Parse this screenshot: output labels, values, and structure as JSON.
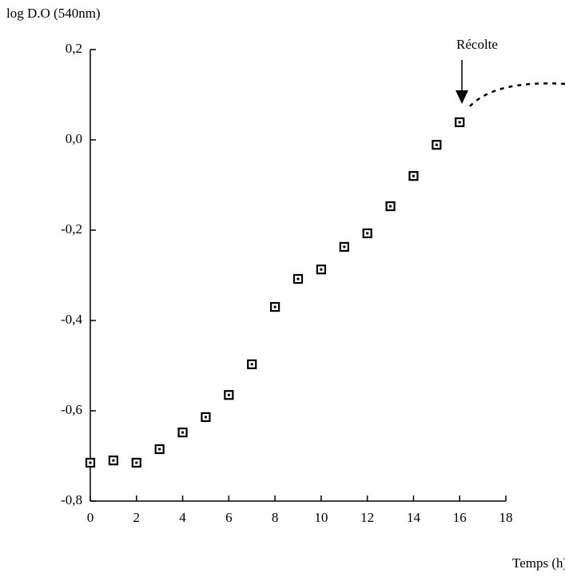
{
  "chart_data": {
    "type": "scatter",
    "y_label": "log D.O (540nm)",
    "x_label": "Temps (h)",
    "annotation": "Récolte",
    "color": "#000000",
    "x": [
      0,
      1,
      2,
      3,
      4,
      5,
      6,
      7,
      8,
      9,
      10,
      11,
      12,
      13,
      14,
      15,
      16
    ],
    "values": [
      -0.715,
      -0.71,
      -0.715,
      -0.685,
      -0.648,
      -0.614,
      -0.565,
      -0.497,
      -0.37,
      -0.308,
      -0.287,
      -0.237,
      -0.207,
      -0.147,
      -0.08,
      -0.011,
      0.039
    ],
    "xlim": [
      0,
      18
    ],
    "xticks": [
      0,
      2,
      4,
      6,
      8,
      10,
      12,
      14,
      16,
      18
    ],
    "ylim": [
      -0.8,
      0.2
    ],
    "yticks": [
      {
        "value": -0.8,
        "label": "-0,8"
      },
      {
        "value": -0.6,
        "label": "-0,6"
      },
      {
        "value": -0.4,
        "label": "-0,4"
      },
      {
        "value": -0.2,
        "label": "-0,2"
      },
      {
        "value": 0,
        "label": "0,0"
      },
      {
        "value": 0.2,
        "label": "0,2"
      }
    ]
  }
}
